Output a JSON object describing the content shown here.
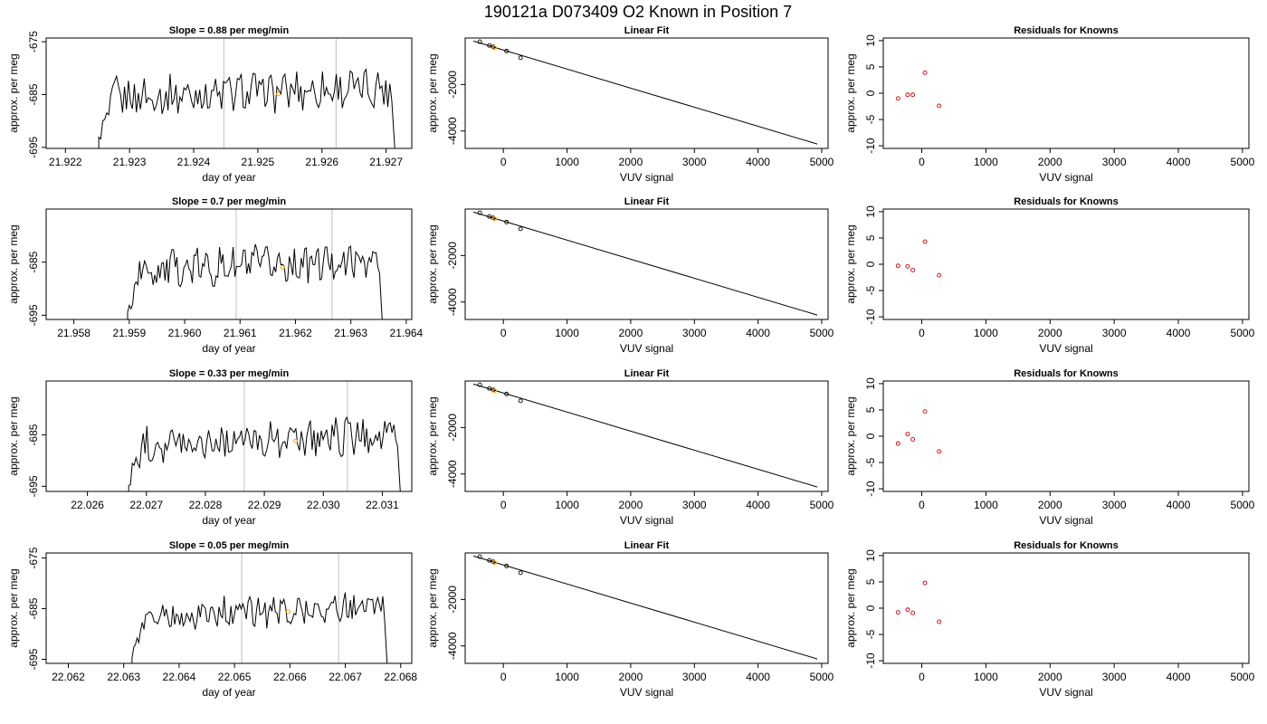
{
  "figure": {
    "title": "190121a     D073409   O2 Known in Position  7"
  },
  "colors": {
    "series_line": "#000000",
    "vertical_marker": "#c0c0c0",
    "highlight_point": "#ffa500",
    "residual_point": "#cc0000",
    "fit_line": "#000000"
  },
  "chart_data": [
    {
      "type": "line",
      "row": 1,
      "panel": "time-series",
      "title": "Slope =  0.88  per meg/min",
      "xlabel": "day of year",
      "ylabel": "approx. per meg",
      "xlim": [
        21.9217,
        21.9274
      ],
      "ylim": [
        -695.2,
        -674.3
      ],
      "xticks": [
        21.922,
        21.923,
        21.924,
        21.925,
        21.926,
        21.927
      ],
      "xtick_labels": [
        "21.922",
        "21.923",
        "21.924",
        "21.925",
        "21.926",
        "21.927"
      ],
      "yticks": [
        -675,
        -685,
        -695
      ],
      "ytick_labels": [
        "-675",
        "-685",
        "-695"
      ],
      "series_start": 21.92252,
      "series_end": 21.92715,
      "series_base": -684.6,
      "series_amp": 3.2,
      "markers": [
        21.92447,
        21.92622
      ],
      "highlight": {
        "x": 21.92532,
        "y": -684.9
      }
    },
    {
      "type": "scatter",
      "row": 1,
      "panel": "linear-fit",
      "title": "Linear Fit",
      "xlabel": "VUV signal",
      "ylabel": "approx. per meg",
      "xlim": [
        -600,
        5100
      ],
      "ylim": [
        -4750,
        0
      ],
      "xticks": [
        0,
        1000,
        2000,
        3000,
        4000,
        5000
      ],
      "xtick_labels": [
        "0",
        "1000",
        "2000",
        "3000",
        "4000",
        "5000"
      ],
      "yticks": [
        -2000,
        -4000
      ],
      "ytick_labels": [
        "-2000",
        "-4000"
      ],
      "points": [
        {
          "x": -370,
          "y": -160
        },
        {
          "x": -220,
          "y": -320
        },
        {
          "x": -160,
          "y": -380
        },
        {
          "x": 50,
          "y": -560
        },
        {
          "x": 270,
          "y": -850
        }
      ],
      "highlight": {
        "x": -140,
        "y": -420
      },
      "fit": {
        "x": [
          -470,
          4930
        ],
        "y": [
          -130,
          -4560
        ]
      }
    },
    {
      "type": "scatter",
      "row": 1,
      "panel": "residuals",
      "title": "Residuals for Knowns",
      "xlabel": "VUV signal",
      "ylabel": "approx. per meg",
      "xlim": [
        -600,
        5100
      ],
      "ylim": [
        -10.5,
        10.5
      ],
      "xticks": [
        0,
        1000,
        2000,
        3000,
        4000,
        5000
      ],
      "xtick_labels": [
        "0",
        "1000",
        "2000",
        "3000",
        "4000",
        "5000"
      ],
      "yticks": [
        10,
        5,
        0,
        -5,
        -10
      ],
      "ytick_labels": [
        "10",
        "5",
        "0",
        "-5",
        "-10"
      ],
      "points": [
        {
          "x": -370,
          "y": -1.0
        },
        {
          "x": -220,
          "y": -0.3
        },
        {
          "x": -140,
          "y": -0.3
        },
        {
          "x": 50,
          "y": 3.9
        },
        {
          "x": 270,
          "y": -2.4
        }
      ]
    },
    {
      "type": "line",
      "row": 2,
      "panel": "time-series",
      "title": "Slope =  0.7  per meg/min",
      "xlabel": "day of year",
      "ylabel": "approx. per meg",
      "xlim": [
        21.9575,
        21.9641
      ],
      "ylim": [
        -695.8,
        -675.0
      ],
      "xticks": [
        21.958,
        21.959,
        21.96,
        21.961,
        21.962,
        21.963,
        21.964
      ],
      "xtick_labels": [
        "21.958",
        "21.959",
        "21.960",
        "21.961",
        "21.962",
        "21.963",
        "21.964"
      ],
      "yticks": [
        -685,
        -695
      ],
      "ytick_labels": [
        "-685",
        "-695"
      ],
      "series_start": 21.95897,
      "series_end": 21.96358,
      "series_base": -685.6,
      "series_amp": 3.0,
      "markers": [
        21.96093,
        21.96266
      ],
      "highlight": {
        "x": 21.96177,
        "y": -686.0
      }
    },
    {
      "type": "scatter",
      "row": 2,
      "panel": "linear-fit",
      "title": "Linear Fit",
      "xlabel": "VUV signal",
      "ylabel": "approx. per meg",
      "xlim": [
        -600,
        5100
      ],
      "ylim": [
        -4750,
        0
      ],
      "xticks": [
        0,
        1000,
        2000,
        3000,
        4000,
        5000
      ],
      "xtick_labels": [
        "0",
        "1000",
        "2000",
        "3000",
        "4000",
        "5000"
      ],
      "yticks": [
        -2000,
        -4000
      ],
      "ytick_labels": [
        "-2000",
        "-4000"
      ],
      "points": [
        {
          "x": -370,
          "y": -160
        },
        {
          "x": -220,
          "y": -320
        },
        {
          "x": -160,
          "y": -380
        },
        {
          "x": 50,
          "y": -560
        },
        {
          "x": 270,
          "y": -850
        }
      ],
      "highlight": {
        "x": -140,
        "y": -420
      },
      "fit": {
        "x": [
          -470,
          4930
        ],
        "y": [
          -130,
          -4560
        ]
      }
    },
    {
      "type": "scatter",
      "row": 2,
      "panel": "residuals",
      "title": "Residuals for Knowns",
      "xlabel": "VUV signal",
      "ylabel": "approx. per meg",
      "xlim": [
        -600,
        5100
      ],
      "ylim": [
        -10.5,
        10.5
      ],
      "xticks": [
        0,
        1000,
        2000,
        3000,
        4000,
        5000
      ],
      "xtick_labels": [
        "0",
        "1000",
        "2000",
        "3000",
        "4000",
        "5000"
      ],
      "yticks": [
        10,
        5,
        0,
        -5,
        -10
      ],
      "ytick_labels": [
        "10",
        "5",
        "0",
        "-5",
        "-10"
      ],
      "points": [
        {
          "x": -370,
          "y": -0.3
        },
        {
          "x": -220,
          "y": -0.4
        },
        {
          "x": -140,
          "y": -1.1
        },
        {
          "x": 50,
          "y": 4.3
        },
        {
          "x": 270,
          "y": -2.1
        }
      ]
    },
    {
      "type": "line",
      "row": 3,
      "panel": "time-series",
      "title": "Slope =  0.33  per meg/min",
      "xlabel": "day of year",
      "ylabel": "approx. per meg",
      "xlim": [
        22.0253,
        22.0315
      ],
      "ylim": [
        -696.0,
        -674.5
      ],
      "xticks": [
        22.026,
        22.027,
        22.028,
        22.029,
        22.03,
        22.031
      ],
      "xtick_labels": [
        "22.026",
        "22.027",
        "22.028",
        "22.029",
        "22.030",
        "22.031"
      ],
      "yticks": [
        -685,
        -695
      ],
      "ytick_labels": [
        "-685",
        "-695"
      ],
      "series_start": 22.0267,
      "series_end": 22.03132,
      "series_base": -685.8,
      "series_amp": 3.0,
      "markers": [
        22.02866,
        22.03041
      ],
      "highlight": {
        "x": 22.02953,
        "y": -686.2
      }
    },
    {
      "type": "scatter",
      "row": 3,
      "panel": "linear-fit",
      "title": "Linear Fit",
      "xlabel": "VUV signal",
      "ylabel": "approx. per meg",
      "xlim": [
        -600,
        5100
      ],
      "ylim": [
        -4750,
        0
      ],
      "xticks": [
        0,
        1000,
        2000,
        3000,
        4000,
        5000
      ],
      "xtick_labels": [
        "0",
        "1000",
        "2000",
        "3000",
        "4000",
        "5000"
      ],
      "yticks": [
        -2000,
        -4000
      ],
      "ytick_labels": [
        "-2000",
        "-4000"
      ],
      "points": [
        {
          "x": -370,
          "y": -160
        },
        {
          "x": -220,
          "y": -320
        },
        {
          "x": -160,
          "y": -380
        },
        {
          "x": 50,
          "y": -560
        },
        {
          "x": 270,
          "y": -850
        }
      ],
      "highlight": {
        "x": -140,
        "y": -420
      },
      "fit": {
        "x": [
          -470,
          4930
        ],
        "y": [
          -130,
          -4560
        ]
      }
    },
    {
      "type": "scatter",
      "row": 3,
      "panel": "residuals",
      "title": "Residuals for Knowns",
      "xlabel": "VUV signal",
      "ylabel": "approx. per meg",
      "xlim": [
        -600,
        5100
      ],
      "ylim": [
        -10.5,
        10.5
      ],
      "xticks": [
        0,
        1000,
        2000,
        3000,
        4000,
        5000
      ],
      "xtick_labels": [
        "0",
        "1000",
        "2000",
        "3000",
        "4000",
        "5000"
      ],
      "yticks": [
        10,
        5,
        0,
        -5,
        -10
      ],
      "ytick_labels": [
        "10",
        "5",
        "0",
        "-5",
        "-10"
      ],
      "points": [
        {
          "x": -370,
          "y": -1.4
        },
        {
          "x": -220,
          "y": 0.4
        },
        {
          "x": -140,
          "y": -0.6
        },
        {
          "x": 50,
          "y": 4.7
        },
        {
          "x": 270,
          "y": -2.9
        }
      ]
    },
    {
      "type": "line",
      "row": 4,
      "panel": "time-series",
      "title": "Slope =  0.05  per meg/min",
      "xlabel": "day of year",
      "ylabel": "approx. per meg",
      "xlim": [
        22.0616,
        22.0682
      ],
      "ylim": [
        -695.8,
        -674.0
      ],
      "xticks": [
        22.062,
        22.063,
        22.064,
        22.065,
        22.066,
        22.067,
        22.068
      ],
      "xtick_labels": [
        "22.062",
        "22.063",
        "22.064",
        "22.065",
        "22.066",
        "22.067",
        "22.068"
      ],
      "yticks": [
        -675,
        -685,
        -695
      ],
      "ytick_labels": [
        "-675",
        "-685",
        "-695"
      ],
      "series_start": 22.06315,
      "series_end": 22.06777,
      "series_base": -685.5,
      "series_amp": 2.6,
      "markers": [
        22.06513,
        22.06688
      ],
      "highlight": {
        "x": 22.06597,
        "y": -685.6
      }
    },
    {
      "type": "scatter",
      "row": 4,
      "panel": "linear-fit",
      "title": "Linear Fit",
      "xlabel": "VUV signal",
      "ylabel": "approx. per meg",
      "xlim": [
        -600,
        5100
      ],
      "ylim": [
        -4750,
        0
      ],
      "xticks": [
        0,
        1000,
        2000,
        3000,
        4000,
        5000
      ],
      "xtick_labels": [
        "0",
        "1000",
        "2000",
        "3000",
        "4000",
        "5000"
      ],
      "yticks": [
        -2000,
        -4000
      ],
      "ytick_labels": [
        "-2000",
        "-4000"
      ],
      "points": [
        {
          "x": -370,
          "y": -160
        },
        {
          "x": -220,
          "y": -320
        },
        {
          "x": -160,
          "y": -380
        },
        {
          "x": 50,
          "y": -560
        },
        {
          "x": 270,
          "y": -850
        }
      ],
      "highlight": {
        "x": -140,
        "y": -420
      },
      "fit": {
        "x": [
          -470,
          4930
        ],
        "y": [
          -130,
          -4560
        ]
      }
    },
    {
      "type": "scatter",
      "row": 4,
      "panel": "residuals",
      "title": "Residuals for Knowns",
      "xlabel": "VUV signal",
      "ylabel": "approx. per meg",
      "xlim": [
        -600,
        5100
      ],
      "ylim": [
        -10.5,
        10.5
      ],
      "xticks": [
        0,
        1000,
        2000,
        3000,
        4000,
        5000
      ],
      "xtick_labels": [
        "0",
        "1000",
        "2000",
        "3000",
        "4000",
        "5000"
      ],
      "yticks": [
        10,
        5,
        0,
        -5,
        -10
      ],
      "ytick_labels": [
        "10",
        "5",
        "0",
        "-5",
        "-10"
      ],
      "points": [
        {
          "x": -370,
          "y": -0.8
        },
        {
          "x": -220,
          "y": -0.3
        },
        {
          "x": -140,
          "y": -0.9
        },
        {
          "x": 50,
          "y": 4.8
        },
        {
          "x": 270,
          "y": -2.6
        }
      ]
    }
  ]
}
